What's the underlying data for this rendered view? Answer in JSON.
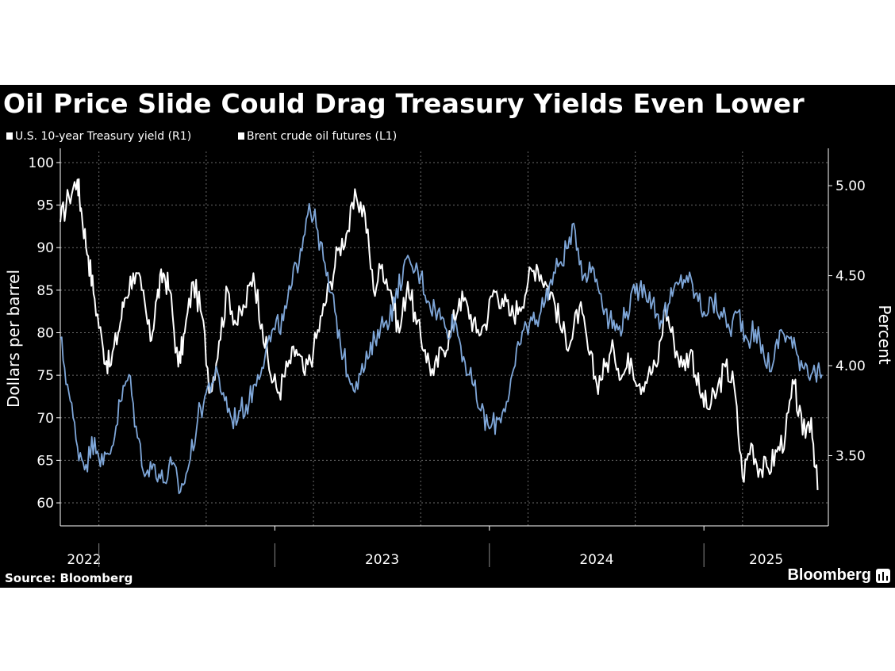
{
  "title": "Oil Price Slide Could Drag Treasury Yields Even Lower",
  "legend": {
    "treasury_label": "U.S. 10-year Treasury yield (R1)",
    "brent_label": "Brent crude oil futures (L1)"
  },
  "source": "Source: Bloomberg",
  "brand": "Bloomberg",
  "colors": {
    "background": "#000000",
    "treasury_line": "#7ea6d8",
    "brent_line": "#ffffff",
    "grid": "#6a6a6a",
    "axis": "#ffffff"
  },
  "chart_data": {
    "type": "line",
    "title": "Oil Price Slide Could Drag Treasury Yields Even Lower",
    "x_range": [
      2022.0,
      2025.58
    ],
    "x_ticks": [
      {
        "value": 2022.0,
        "label": "2022"
      },
      {
        "value": 2023.0,
        "label": "2023"
      },
      {
        "value": 2024.0,
        "label": "2024"
      },
      {
        "value": 2025.0,
        "label": "2025"
      }
    ],
    "left_axis": {
      "label": "Dollars per barrel",
      "range": [
        57.3,
        101.3
      ],
      "ticks": [
        60,
        65,
        70,
        75,
        80,
        85,
        90,
        95,
        100
      ]
    },
    "right_axis": {
      "label": "Percent",
      "range": [
        3.11,
        5.19
      ],
      "ticks": [
        {
          "value": 3.5,
          "label": "3.50"
        },
        {
          "value": 4.0,
          "label": "4.00"
        },
        {
          "value": 4.5,
          "label": "4.50"
        },
        {
          "value": 5.0,
          "label": "5.00"
        }
      ]
    },
    "grid": true,
    "series": [
      {
        "name": "Brent crude oil futures (L1)",
        "axis": "left",
        "color": "#ffffff",
        "x": [
          2022.0,
          2022.04,
          2022.08,
          2022.1,
          2022.13,
          2022.16,
          2022.2,
          2022.23,
          2022.27,
          2022.3,
          2022.34,
          2022.38,
          2022.42,
          2022.45,
          2022.48,
          2022.51,
          2022.55,
          2022.58,
          2022.62,
          2022.66,
          2022.7,
          2022.74,
          2022.78,
          2022.82,
          2022.86,
          2022.9,
          2022.94,
          2022.98,
          2023.02,
          2023.06,
          2023.1,
          2023.14,
          2023.18,
          2023.22,
          2023.26,
          2023.3,
          2023.34,
          2023.38,
          2023.42,
          2023.46,
          2023.5,
          2023.54,
          2023.58,
          2023.62,
          2023.66,
          2023.7,
          2023.74,
          2023.78,
          2023.82,
          2023.86,
          2023.9,
          2023.94,
          2023.98,
          2024.02,
          2024.06,
          2024.1,
          2024.14,
          2024.18,
          2024.22,
          2024.26,
          2024.3,
          2024.34,
          2024.38,
          2024.42,
          2024.46,
          2024.5,
          2024.54,
          2024.58,
          2024.62,
          2024.66,
          2024.7,
          2024.74,
          2024.78,
          2024.82,
          2024.86,
          2024.9,
          2024.94,
          2024.98,
          2025.02,
          2025.06,
          2025.1,
          2025.14,
          2025.18,
          2025.22,
          2025.26,
          2025.3,
          2025.34,
          2025.38,
          2025.42,
          2025.46,
          2025.5,
          2025.53
        ],
        "y": [
          93,
          96,
          98,
          94,
          89,
          84,
          78,
          76,
          80,
          84,
          87,
          85,
          79,
          84,
          87,
          85,
          76,
          80,
          86,
          82,
          73,
          79,
          85,
          81,
          83,
          87,
          81,
          75,
          73,
          76,
          78,
          75,
          78,
          82,
          86,
          90,
          92,
          96,
          94,
          85,
          88,
          85,
          80,
          86,
          81,
          78,
          75,
          78,
          80,
          84,
          83,
          80,
          81,
          85,
          84,
          82,
          83,
          86,
          88,
          86,
          84,
          80,
          79,
          83,
          78,
          74,
          76,
          78,
          75,
          77,
          74,
          75,
          76,
          83,
          79,
          76,
          78,
          73,
          71,
          73,
          76,
          74,
          63,
          67,
          64,
          64,
          66,
          68,
          74,
          68,
          70,
          61.5
        ]
      },
      {
        "name": "U.S. 10-year Treasury yield (R1)",
        "axis": "right",
        "color": "#7ea6d8",
        "x": [
          2022.0,
          2022.04,
          2022.08,
          2022.12,
          2022.16,
          2022.2,
          2022.24,
          2022.28,
          2022.32,
          2022.36,
          2022.4,
          2022.44,
          2022.48,
          2022.52,
          2022.56,
          2022.6,
          2022.64,
          2022.68,
          2022.72,
          2022.76,
          2022.8,
          2022.84,
          2022.88,
          2022.92,
          2022.96,
          2023.0,
          2023.04,
          2023.08,
          2023.12,
          2023.16,
          2023.2,
          2023.24,
          2023.28,
          2023.32,
          2023.36,
          2023.4,
          2023.44,
          2023.48,
          2023.52,
          2023.56,
          2023.6,
          2023.64,
          2023.68,
          2023.72,
          2023.76,
          2023.8,
          2023.84,
          2023.88,
          2023.92,
          2023.96,
          2024.0,
          2024.04,
          2024.08,
          2024.12,
          2024.16,
          2024.2,
          2024.24,
          2024.28,
          2024.32,
          2024.36,
          2024.4,
          2024.44,
          2024.48,
          2024.52,
          2024.56,
          2024.6,
          2024.64,
          2024.68,
          2024.72,
          2024.76,
          2024.8,
          2024.84,
          2024.88,
          2024.92,
          2024.96,
          2025.0,
          2025.04,
          2025.08,
          2025.12,
          2025.16,
          2025.2,
          2025.24,
          2025.28,
          2025.32,
          2025.36,
          2025.4,
          2025.44,
          2025.48,
          2025.52,
          2025.55
        ],
        "y": [
          4.15,
          3.85,
          3.55,
          3.45,
          3.6,
          3.45,
          3.55,
          3.8,
          3.95,
          3.6,
          3.4,
          3.45,
          3.35,
          3.45,
          3.3,
          3.45,
          3.7,
          3.85,
          3.95,
          3.85,
          3.7,
          3.75,
          3.8,
          3.95,
          4.1,
          4.2,
          4.25,
          4.45,
          4.65,
          4.9,
          4.75,
          4.5,
          4.3,
          4.05,
          3.9,
          3.95,
          4.05,
          4.2,
          4.25,
          4.35,
          4.55,
          4.55,
          4.5,
          4.35,
          4.3,
          4.2,
          4.25,
          4.05,
          3.9,
          3.75,
          3.65,
          3.7,
          3.8,
          4.0,
          4.2,
          4.25,
          4.3,
          4.45,
          4.55,
          4.65,
          4.75,
          4.5,
          4.55,
          4.4,
          4.25,
          4.2,
          4.3,
          4.4,
          4.45,
          4.35,
          4.25,
          4.35,
          4.45,
          4.5,
          4.4,
          4.3,
          4.35,
          4.3,
          4.2,
          4.3,
          4.15,
          4.2,
          4.05,
          4.0,
          4.2,
          4.15,
          4.05,
          4.0,
          3.95,
          3.95
        ]
      }
    ]
  }
}
